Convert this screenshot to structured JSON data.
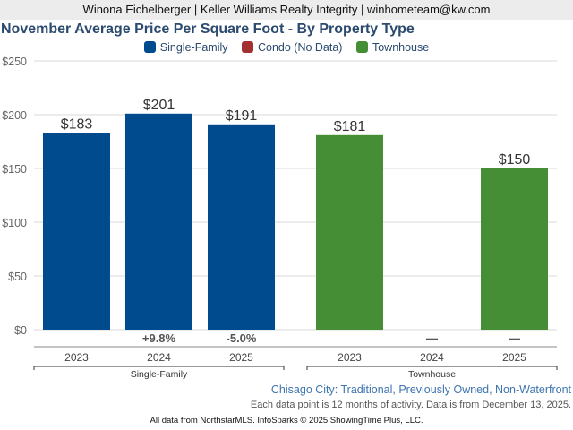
{
  "header": {
    "agent_line": "Winona Eichelberger | Keller Williams Realty Integrity | winhometeam@kw.com"
  },
  "colors": {
    "single_family": "#004b8d",
    "condo": "#a23030",
    "townhouse": "#468e36",
    "title": "#2b4a6f"
  },
  "chart_data": {
    "type": "bar",
    "title": "November Average Price Per Square Foot - By Property Type",
    "xlabel": "",
    "ylabel": "",
    "ylim": [
      0,
      250
    ],
    "yticks": [
      "$0",
      "$50",
      "$100",
      "$150",
      "$200",
      "$250"
    ],
    "ytick_values": [
      0,
      50,
      100,
      150,
      200,
      250
    ],
    "grid": true,
    "legend_position": "top-center",
    "legend": [
      {
        "name": "Single-Family",
        "color": "#004b8d"
      },
      {
        "name": "Condo (No Data)",
        "color": "#a23030"
      },
      {
        "name": "Townhouse",
        "color": "#468e36"
      }
    ],
    "groups": [
      {
        "name": "Single-Family",
        "color": "#004b8d",
        "categories": [
          "2023",
          "2024",
          "2025"
        ],
        "values": [
          183,
          201,
          191
        ],
        "labels": [
          "$183",
          "$201",
          "$191"
        ],
        "changes": [
          "",
          "+9.8%",
          "-5.0%"
        ]
      },
      {
        "name": "Townhouse",
        "color": "#468e36",
        "categories": [
          "2023",
          "2024",
          "2025"
        ],
        "values": [
          181,
          null,
          150
        ],
        "labels": [
          "$181",
          "",
          "$150"
        ],
        "changes": [
          "",
          "—",
          "—"
        ]
      }
    ]
  },
  "footer": {
    "subtitle": "Chisago City: Traditional, Previously Owned, Non-Waterfront",
    "note": "Each data point is 12 months of activity. Data is from December 13, 2025.",
    "source": "All data from NorthstarMLS. InfoSparks © 2025 ShowingTime Plus, LLC."
  }
}
